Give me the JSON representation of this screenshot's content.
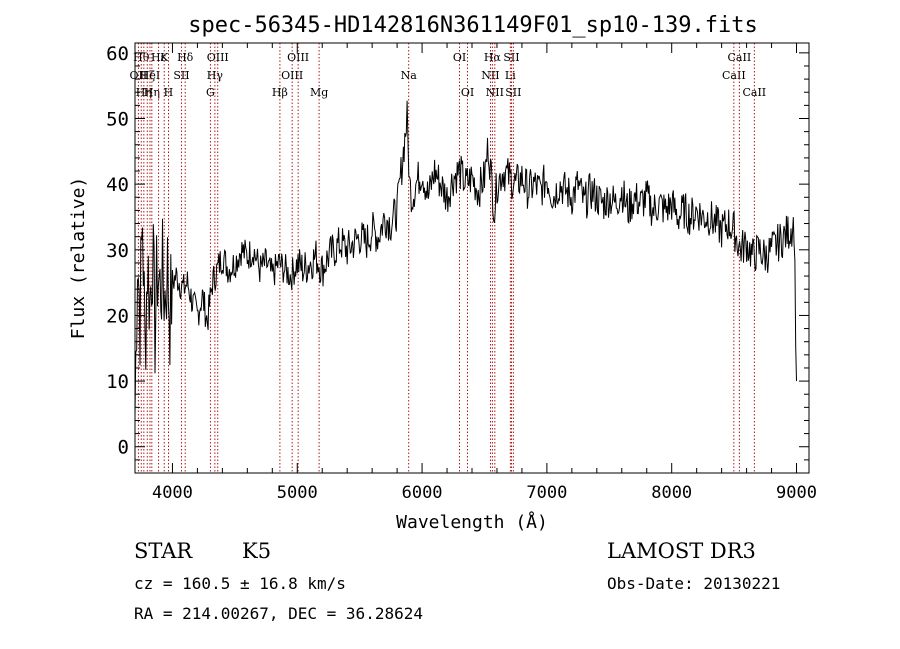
{
  "chart_data": {
    "type": "line",
    "title": "spec-56345-HD142816N361149F01_sp10-139.fits",
    "xlabel": "Wavelength (Å)",
    "ylabel": "Flux (relative)",
    "xlim": [
      3700,
      9100
    ],
    "ylim": [
      -4,
      61.5
    ],
    "x_ticks": [
      4000,
      5000,
      6000,
      7000,
      8000,
      9000
    ],
    "y_ticks": [
      0,
      10,
      20,
      30,
      40,
      50,
      60
    ],
    "grid": false,
    "line_color": "#000000",
    "marker_color": "#aa0000",
    "series": [
      {
        "x": [
          3700,
          3720,
          3740,
          3760,
          3780,
          3800,
          3820,
          3840,
          3860,
          3880,
          3900,
          3920,
          3940,
          3960,
          3980,
          4000,
          4030,
          4060,
          4090,
          4120,
          4160,
          4200,
          4240,
          4280,
          4320,
          4360,
          4400,
          4450,
          4500,
          4550,
          4600,
          4650,
          4700,
          4750,
          4800,
          4850,
          4900,
          4950,
          5000,
          5050,
          5100,
          5150,
          5200,
          5250,
          5300,
          5350,
          5400,
          5450,
          5500,
          5550,
          5600,
          5650,
          5700,
          5750,
          5800,
          5850,
          5880,
          5900,
          5920,
          5950,
          6000,
          6050,
          6100,
          6150,
          6200,
          6250,
          6300,
          6350,
          6400,
          6450,
          6500,
          6530,
          6560,
          6580,
          6600,
          6650,
          6700,
          6750,
          6800,
          6850,
          6900,
          6950,
          7000,
          7050,
          7100,
          7150,
          7200,
          7250,
          7300,
          7350,
          7400,
          7450,
          7500,
          7550,
          7600,
          7650,
          7700,
          7750,
          7800,
          7850,
          7900,
          7950,
          8000,
          8050,
          8100,
          8150,
          8200,
          8250,
          8300,
          8350,
          8400,
          8450,
          8500,
          8550,
          8600,
          8650,
          8700,
          8750,
          8800,
          8850,
          8900,
          8950,
          8980,
          9000
        ],
        "y": [
          5,
          30,
          20,
          35,
          15,
          28,
          22,
          30,
          18,
          27,
          24,
          26,
          23,
          27,
          20,
          25,
          26,
          25,
          24,
          25,
          22,
          20,
          23,
          19,
          25,
          27,
          29,
          27,
          28,
          30,
          29,
          30,
          27,
          28,
          26,
          28,
          27,
          26,
          28,
          27,
          28,
          29,
          27,
          29,
          30,
          31,
          30,
          31,
          32,
          31,
          33,
          32,
          35,
          34,
          36,
          45,
          50,
          40,
          38,
          40,
          42,
          38,
          42,
          40,
          38,
          41,
          42,
          40,
          41,
          39,
          41,
          46,
          40,
          36,
          40,
          42,
          41,
          40,
          41,
          39,
          40,
          39,
          41,
          38,
          40,
          39,
          38,
          40,
          37,
          39,
          38,
          37,
          38,
          37,
          39,
          36,
          38,
          37,
          38,
          36,
          37,
          36,
          37,
          35,
          36,
          35,
          36,
          35,
          35,
          34,
          33,
          34,
          33,
          30,
          31,
          29,
          30,
          29,
          30,
          31,
          32,
          33,
          34,
          10
        ]
      }
    ],
    "lines": [
      {
        "wl": 3727,
        "row": 2,
        "label": "OII"
      },
      {
        "wl": 3750,
        "row": 1,
        "label": "Hθ"
      },
      {
        "wl": 3771,
        "row": 3,
        "label": "Hη"
      },
      {
        "wl": 3798,
        "row": 2,
        "label": "Hζ"
      },
      {
        "wl": 3820,
        "row": 2,
        "label": "HeI"
      },
      {
        "wl": 3835,
        "row": 3,
        "label": "Hη"
      },
      {
        "wl": 3889,
        "row": 1,
        "label": "Hε"
      },
      {
        "wl": 3934,
        "row": 1,
        "label": "K"
      },
      {
        "wl": 3968,
        "row": 3,
        "label": "H"
      },
      {
        "wl": 4072,
        "row": 2,
        "label": "SII"
      },
      {
        "wl": 4102,
        "row": 1,
        "label": "Hδ"
      },
      {
        "wl": 4304,
        "row": 3,
        "label": "G"
      },
      {
        "wl": 4340,
        "row": 2,
        "label": "Hγ"
      },
      {
        "wl": 4363,
        "row": 1,
        "label": "OIII"
      },
      {
        "wl": 4861,
        "row": 3,
        "label": "Hβ"
      },
      {
        "wl": 4959,
        "row": 2,
        "label": "OIII"
      },
      {
        "wl": 5007,
        "row": 1,
        "label": "OIII"
      },
      {
        "wl": 5175,
        "row": 3,
        "label": "Mg"
      },
      {
        "wl": 5893,
        "row": 2,
        "label": "Na"
      },
      {
        "wl": 6300,
        "row": 1,
        "label": "OI"
      },
      {
        "wl": 6364,
        "row": 3,
        "label": "OI"
      },
      {
        "wl": 6548,
        "row": 2,
        "label": "NII"
      },
      {
        "wl": 6563,
        "row": 1,
        "label": "Hα"
      },
      {
        "wl": 6583,
        "row": 3,
        "label": "NII"
      },
      {
        "wl": 6707,
        "row": 2,
        "label": "Li"
      },
      {
        "wl": 6716,
        "row": 1,
        "label": "SII"
      },
      {
        "wl": 6731,
        "row": 3,
        "label": "SII"
      },
      {
        "wl": 8498,
        "row": 2,
        "label": "CaII"
      },
      {
        "wl": 8542,
        "row": 1,
        "label": "CaII"
      },
      {
        "wl": 8662,
        "row": 3,
        "label": "CaII"
      }
    ]
  },
  "info": {
    "object_class": "STAR",
    "subclass": "K5",
    "redshift": "cz = 160.5 ± 16.8 km/s",
    "coords": "RA = 214.00267, DEC =  36.28624",
    "survey": "LAMOST DR3",
    "obs_date": "Obs-Date: 20130221"
  }
}
